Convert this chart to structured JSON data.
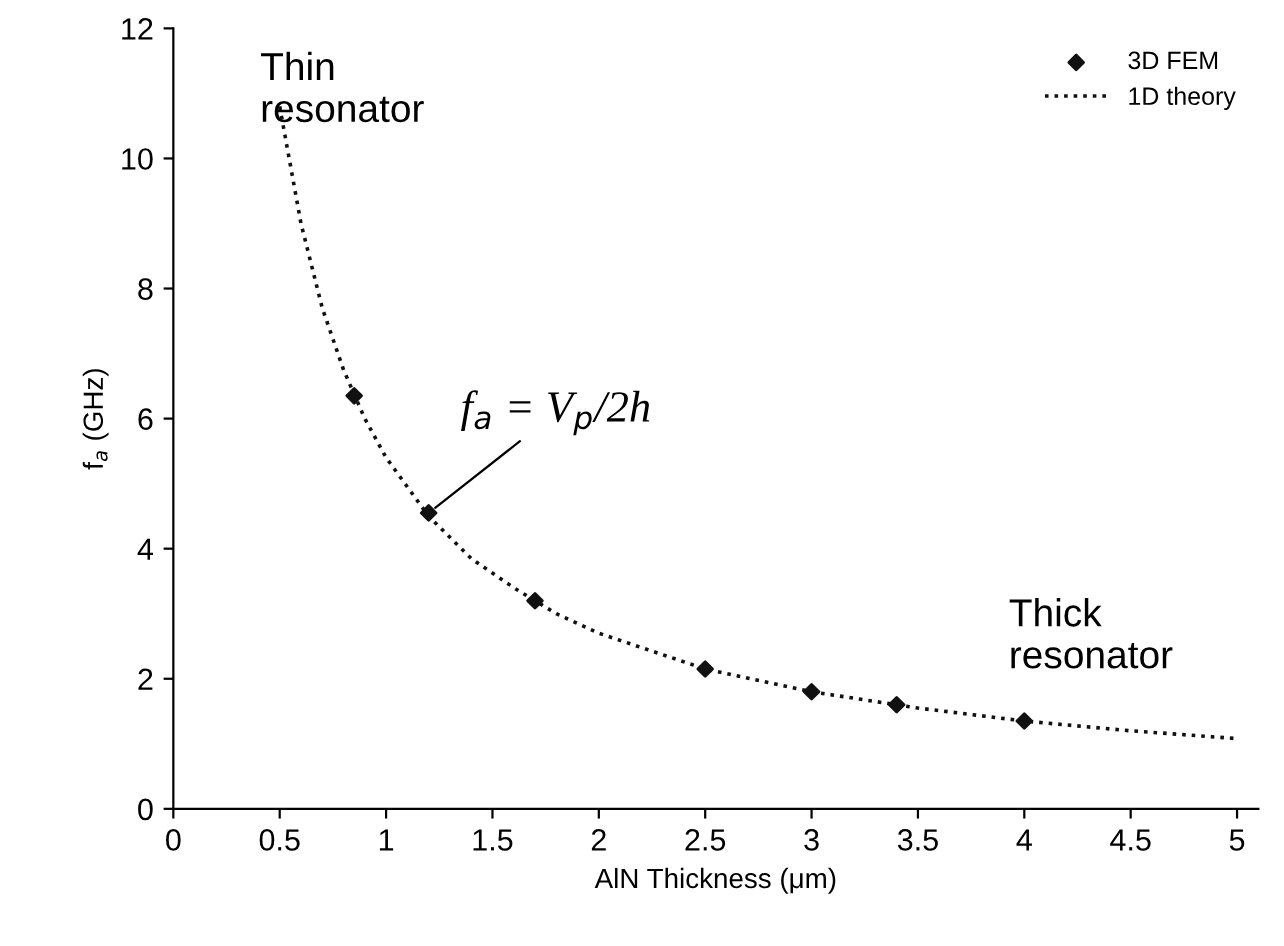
{
  "chart_data": {
    "type": "scatter",
    "xlabel": "AlN Thickness (μm)",
    "ylabel": "f$_{a}$ (GHz)",
    "xlim": [
      0,
      5.1
    ],
    "ylim": [
      0,
      12
    ],
    "xticks": [
      0,
      0.5,
      1,
      1.5,
      2,
      2.5,
      3,
      3.5,
      4,
      4.5,
      5
    ],
    "yticks": [
      0,
      2,
      4,
      6,
      8,
      10,
      12
    ],
    "grid": false,
    "legend": "top right",
    "series": [
      {
        "name": "3D FEM",
        "color": "#111111",
        "marker": "diamond",
        "x": [
          0.85,
          1.2,
          1.7,
          2.5,
          3.0,
          3.4,
          4.0
        ],
        "values": [
          6.35,
          4.55,
          3.2,
          2.15,
          1.8,
          1.6,
          1.35
        ]
      },
      {
        "name": "1D theory",
        "type": "line",
        "color": "#111111",
        "marker": "none",
        "line_style": "dotted",
        "x": [
          0.5,
          0.6,
          0.7,
          0.8,
          0.9,
          1.0,
          1.2,
          1.4,
          1.6,
          1.8,
          2.0,
          2.5,
          3.0,
          3.5,
          4.0,
          4.5,
          5.0
        ],
        "values": [
          10.8,
          9.0,
          7.7,
          6.75,
          6.0,
          5.4,
          4.5,
          3.85,
          3.4,
          3.0,
          2.7,
          2.15,
          1.8,
          1.55,
          1.35,
          1.2,
          1.08
        ]
      }
    ],
    "annotations": [
      "Thin\nresonator",
      "Thick\nresonator",
      {
        "text": "f$_{a}$ = V$_{p}$/2h",
        "x": 1.2,
        "y": 4.55
      }
    ]
  }
}
